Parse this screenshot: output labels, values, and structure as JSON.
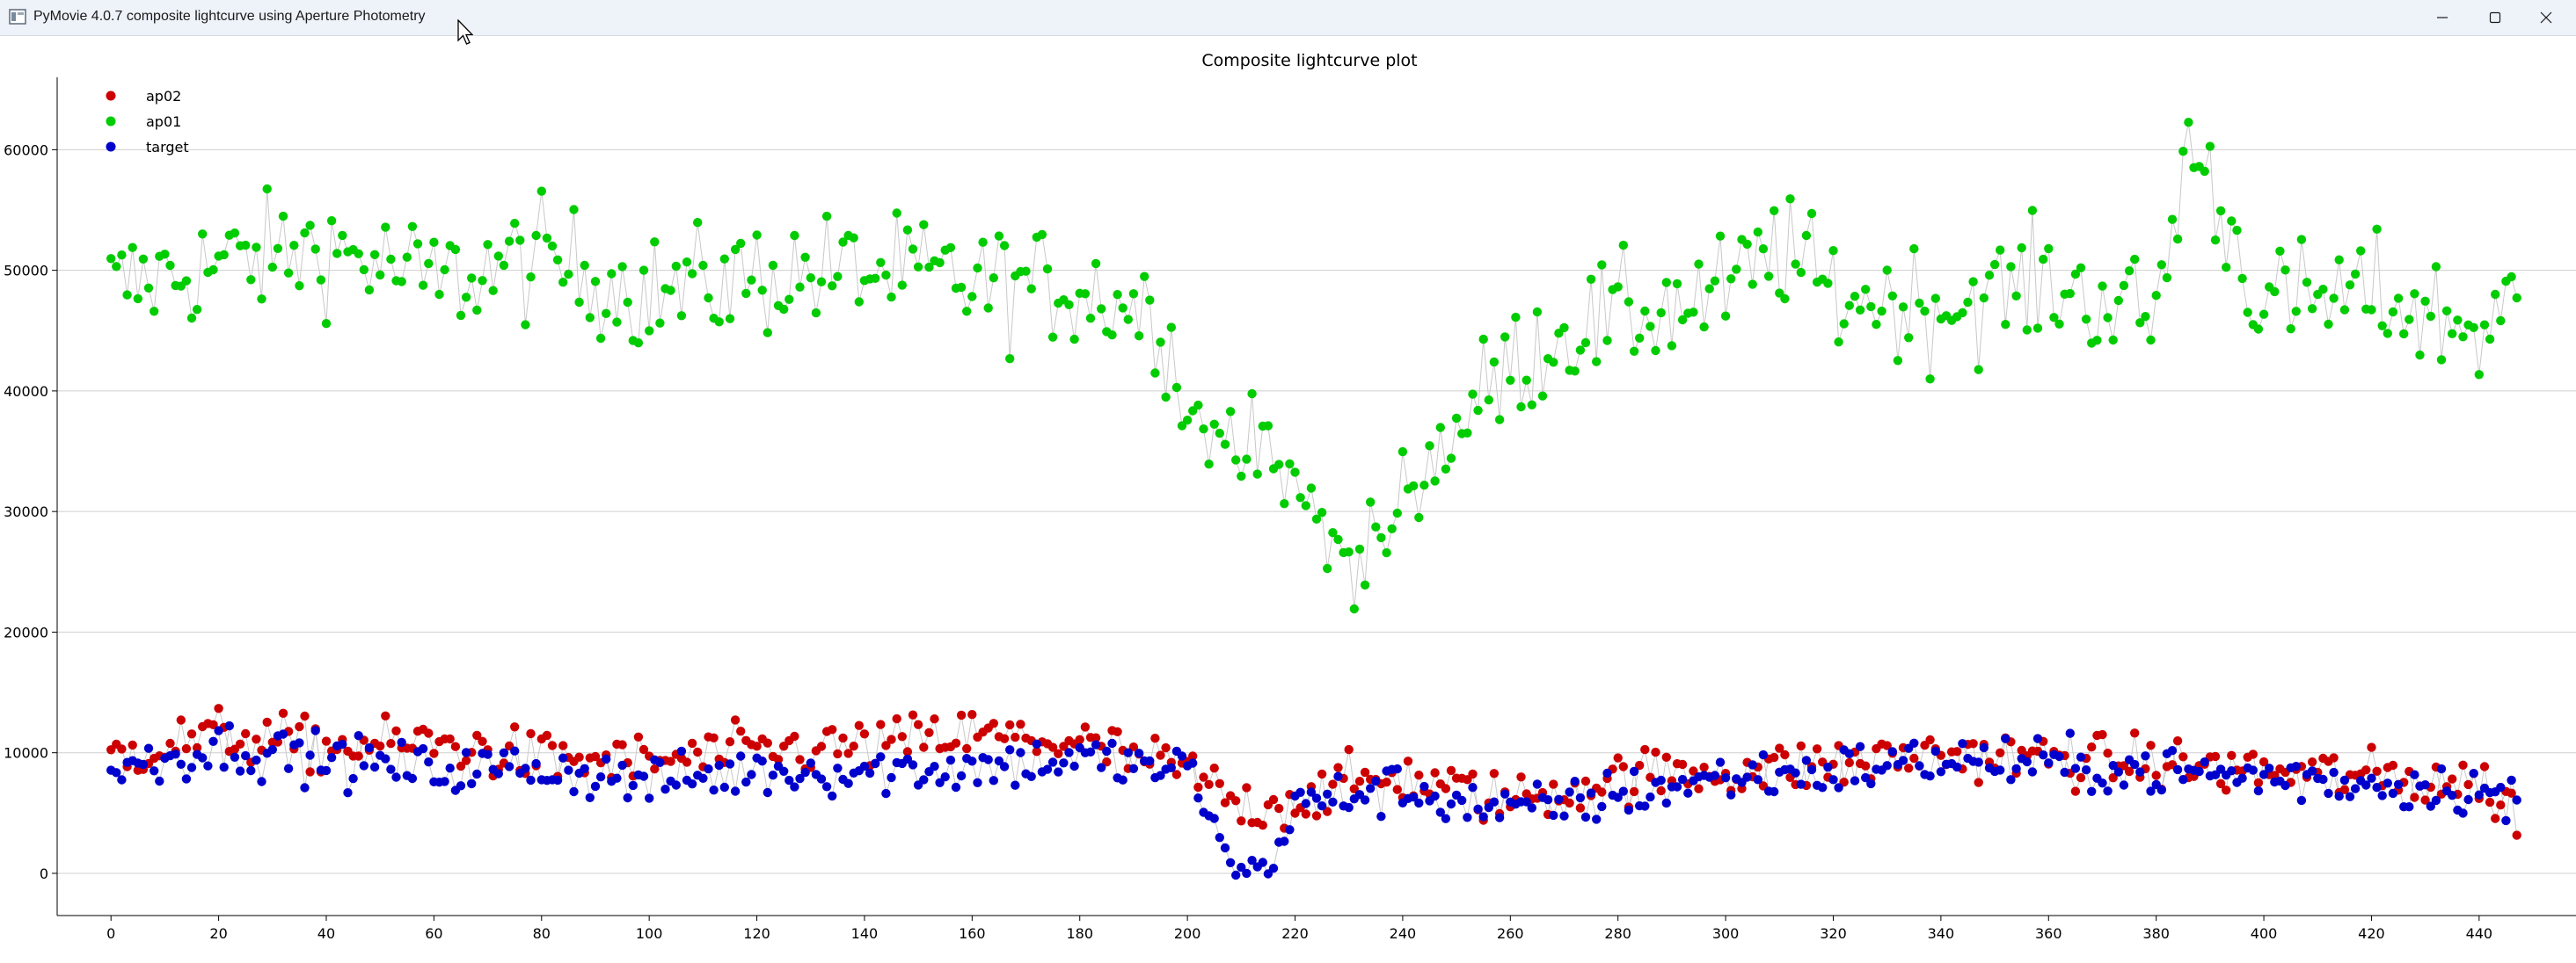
{
  "window": {
    "title": "PyMovie 4.0.7 composite lightcurve using Aperture Photometry",
    "minimize_icon": "minimize-icon",
    "maximize_icon": "maximize-icon",
    "close_icon": "close-icon"
  },
  "chart_data": {
    "type": "scatter",
    "title": "Composite lightcurve plot",
    "xlabel": "",
    "ylabel": "",
    "xlim": [
      -10,
      458
    ],
    "ylim": [
      -3500,
      66000
    ],
    "x_ticks": [
      0,
      20,
      40,
      60,
      80,
      100,
      120,
      140,
      160,
      180,
      200,
      220,
      240,
      260,
      280,
      300,
      320,
      340,
      360,
      380,
      400,
      420,
      440
    ],
    "y_ticks": [
      0,
      10000,
      20000,
      30000,
      40000,
      50000,
      60000
    ],
    "grid": "horizontal",
    "legend_position": "top-left",
    "connecting_line_color": "#c8c8c8",
    "series": [
      {
        "name": "ap02",
        "color": "#cc0000",
        "approximate_values": [
          [
            0,
            9800
          ],
          [
            20,
            11500
          ],
          [
            40,
            10500
          ],
          [
            60,
            10800
          ],
          [
            80,
            9500
          ],
          [
            100,
            9200
          ],
          [
            120,
            10200
          ],
          [
            140,
            10500
          ],
          [
            160,
            11500
          ],
          [
            180,
            10800
          ],
          [
            200,
            8500
          ],
          [
            210,
            5500
          ],
          [
            220,
            6000
          ],
          [
            230,
            7500
          ],
          [
            240,
            8000
          ],
          [
            260,
            6000
          ],
          [
            280,
            8000
          ],
          [
            300,
            8500
          ],
          [
            320,
            9000
          ],
          [
            340,
            10000
          ],
          [
            360,
            9500
          ],
          [
            380,
            9000
          ],
          [
            400,
            8500
          ],
          [
            420,
            8000
          ],
          [
            440,
            7500
          ],
          [
            447,
            5000
          ]
        ]
      },
      {
        "name": "ap01",
        "color": "#00cc00",
        "approximate_values": [
          [
            0,
            48500
          ],
          [
            20,
            50500
          ],
          [
            40,
            52000
          ],
          [
            60,
            49000
          ],
          [
            80,
            51000
          ],
          [
            100,
            48000
          ],
          [
            120,
            49500
          ],
          [
            140,
            50000
          ],
          [
            160,
            49000
          ],
          [
            180,
            48500
          ],
          [
            195,
            46500
          ],
          [
            200,
            38000
          ],
          [
            210,
            36000
          ],
          [
            220,
            32000
          ],
          [
            230,
            26000
          ],
          [
            235,
            27000
          ],
          [
            240,
            32000
          ],
          [
            250,
            37000
          ],
          [
            260,
            42000
          ],
          [
            270,
            45000
          ],
          [
            280,
            46000
          ],
          [
            300,
            48000
          ],
          [
            310,
            52000
          ],
          [
            320,
            48000
          ],
          [
            340,
            47000
          ],
          [
            360,
            49000
          ],
          [
            380,
            46000
          ],
          [
            386,
            61000
          ],
          [
            400,
            47000
          ],
          [
            420,
            48000
          ],
          [
            440,
            45000
          ],
          [
            447,
            47000
          ]
        ]
      },
      {
        "name": "target",
        "color": "#0000cc",
        "approximate_values": [
          [
            0,
            8500
          ],
          [
            20,
            10500
          ],
          [
            40,
            9500
          ],
          [
            60,
            8500
          ],
          [
            80,
            8800
          ],
          [
            100,
            7500
          ],
          [
            120,
            8500
          ],
          [
            140,
            8500
          ],
          [
            160,
            8800
          ],
          [
            180,
            9500
          ],
          [
            200,
            8500
          ],
          [
            205,
            4500
          ],
          [
            208,
            500
          ],
          [
            212,
            800
          ],
          [
            215,
            0
          ],
          [
            220,
            5500
          ],
          [
            230,
            6500
          ],
          [
            240,
            7000
          ],
          [
            260,
            5000
          ],
          [
            280,
            6500
          ],
          [
            300,
            8000
          ],
          [
            320,
            8500
          ],
          [
            340,
            9500
          ],
          [
            360,
            9000
          ],
          [
            380,
            8500
          ],
          [
            400,
            8000
          ],
          [
            420,
            7500
          ],
          [
            440,
            7000
          ],
          [
            447,
            5500
          ]
        ]
      }
    ]
  }
}
